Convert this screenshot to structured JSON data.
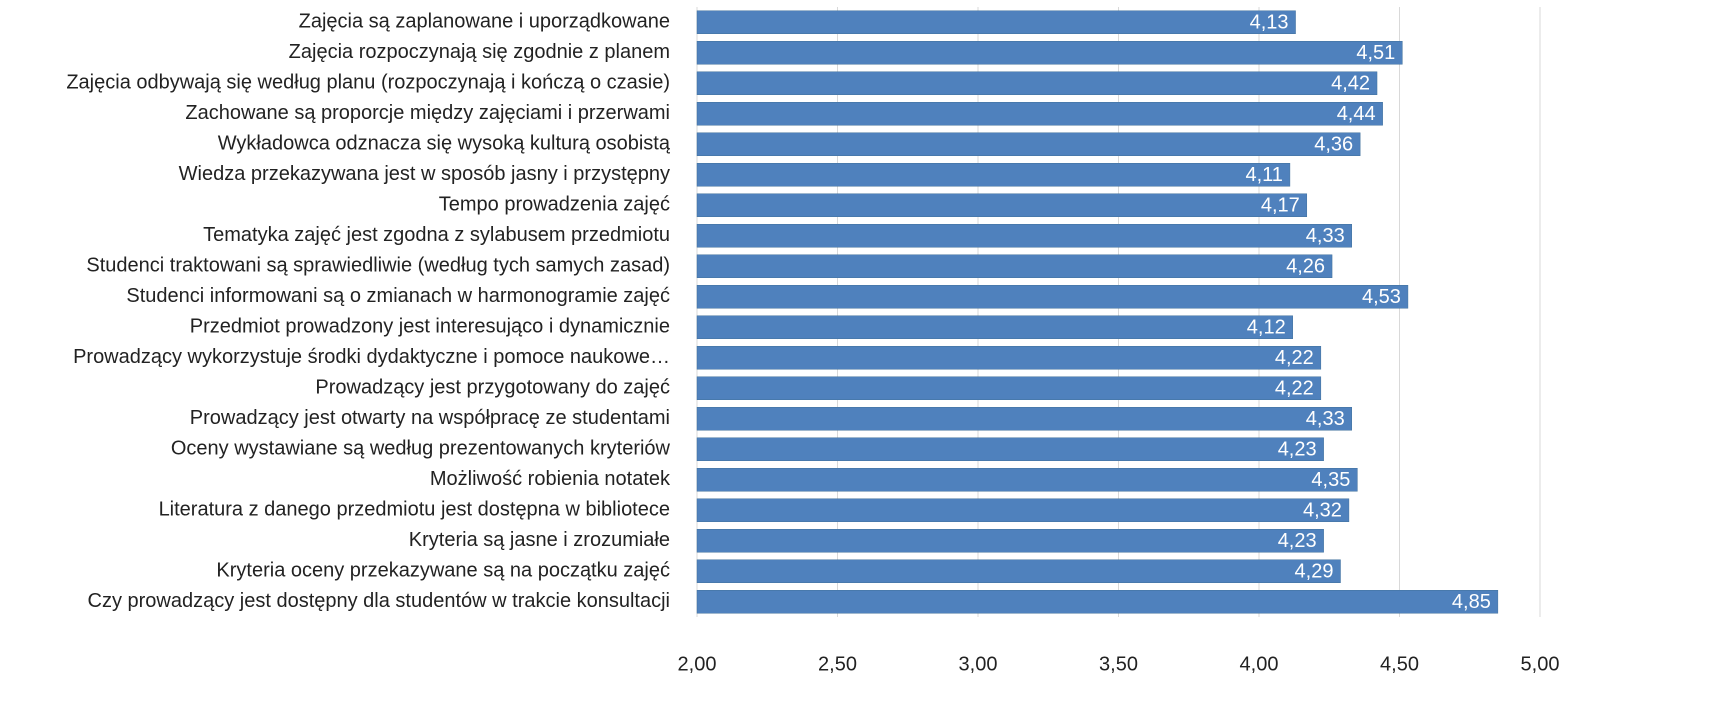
{
  "chart_data": {
    "type": "bar",
    "orientation": "horizontal",
    "categories": [
      "Zajęcia są zaplanowane i uporządkowane",
      "Zajęcia rozpoczynają się zgodnie z planem",
      "Zajęcia odbywają się według planu (rozpoczynają i kończą o czasie)",
      "Zachowane są proporcje między zajęciami i przerwami",
      "Wykładowca odznacza się wysoką kulturą osobistą",
      "Wiedza przekazywana jest w sposób jasny i przystępny",
      "Tempo prowadzenia zajęć",
      "Tematyka zajęć jest zgodna z sylabusem przedmiotu",
      "Studenci traktowani są sprawiedliwie (według tych samych zasad)",
      "Studenci informowani są o zmianach w harmonogramie zajęć",
      "Przedmiot prowadzony jest interesująco i dynamicznie",
      "Prowadzący wykorzystuje środki dydaktyczne i pomoce naukowe…",
      "Prowadzący jest przygotowany do zajęć",
      "Prowadzący jest otwarty na współpracę ze studentami",
      "Oceny wystawiane są według prezentowanych kryteriów",
      "Możliwość robienia notatek",
      "Literatura z danego przedmiotu jest dostępna w bibliotece",
      "Kryteria są jasne i zrozumiałe",
      "Kryteria oceny przekazywane są na początku zajęć",
      "Czy prowadzący jest dostępny dla studentów w trakcie konsultacji"
    ],
    "values": [
      4.13,
      4.51,
      4.42,
      4.44,
      4.36,
      4.11,
      4.17,
      4.33,
      4.26,
      4.53,
      4.12,
      4.22,
      4.22,
      4.33,
      4.23,
      4.35,
      4.32,
      4.23,
      4.29,
      4.85
    ],
    "value_labels": [
      "4,13",
      "4,51",
      "4,42",
      "4,44",
      "4,36",
      "4,11",
      "4,17",
      "4,33",
      "4,26",
      "4,53",
      "4,12",
      "4,22",
      "4,22",
      "4,33",
      "4,23",
      "4,35",
      "4,32",
      "4,23",
      "4,29",
      "4,85"
    ],
    "color": "#4f81bd",
    "xlim": [
      2,
      5
    ],
    "xticks": [
      {
        "value": 2,
        "label": "2,00"
      },
      {
        "value": 2.5,
        "label": "2,50"
      },
      {
        "value": 3,
        "label": "3,00"
      },
      {
        "value": 3.5,
        "label": "3,50"
      },
      {
        "value": 4,
        "label": "4,00"
      },
      {
        "value": 4.5,
        "label": "4,50"
      },
      {
        "value": 5,
        "label": "5,00"
      }
    ],
    "grid": true
  }
}
